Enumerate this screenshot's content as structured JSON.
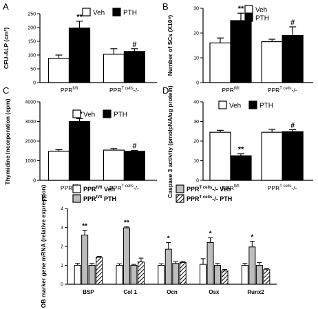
{
  "figure": {
    "panel_labels": [
      "A",
      "B",
      "C",
      "D",
      "E"
    ],
    "legend": {
      "veh": "Veh",
      "pth": "PTH"
    },
    "groups": {
      "flox": "PPR",
      "flox_sup": "fl/fl",
      "ko": "PPR",
      "ko_sup": "T cells",
      "ko_suffix": "-/-"
    }
  },
  "colors": {
    "veh": "#ffffff",
    "pth": "#000000",
    "gray": "#bdbdbd",
    "stroke": "#000000"
  },
  "chart_data": [
    {
      "type": "bar",
      "panel": "A",
      "ylabel": "CFU-ALP (cm²)",
      "ylim": [
        0,
        250
      ],
      "yticks": [
        0,
        50,
        100,
        150,
        200,
        250
      ],
      "categories": [
        "PPR fl/fl",
        "PPR T cells -/-"
      ],
      "series": [
        {
          "name": "Veh",
          "values": [
            88,
            103
          ],
          "errors": [
            12,
            20
          ]
        },
        {
          "name": "PTH",
          "values": [
            198,
            113
          ],
          "errors": [
            25,
            10
          ]
        }
      ],
      "annotations": [
        {
          "series": 1,
          "category": 0,
          "text": "**"
        },
        {
          "series": 1,
          "category": 1,
          "text": "#"
        }
      ]
    },
    {
      "type": "bar",
      "panel": "B",
      "ylabel": "Number of SCs (X10⁶)",
      "ylim": [
        0,
        30
      ],
      "yticks": [
        0,
        10,
        20,
        30
      ],
      "categories": [
        "PPR fl/fl",
        "PPR T cells -/-"
      ],
      "series": [
        {
          "name": "Veh",
          "values": [
            16,
            16.5
          ],
          "errors": [
            2,
            1
          ]
        },
        {
          "name": "PTH",
          "values": [
            25,
            19
          ],
          "errors": [
            3,
            3.5
          ]
        }
      ],
      "annotations": [
        {
          "series": 1,
          "category": 0,
          "text": "**"
        },
        {
          "series": 1,
          "category": 1,
          "text": "#"
        }
      ]
    },
    {
      "type": "bar",
      "panel": "C",
      "ylabel": "Thymidine Incorporation (cpm)",
      "ylim": [
        0,
        4000
      ],
      "yticks": [
        0,
        1000,
        2000,
        3000,
        4000
      ],
      "categories": [
        "PPR fl/fl",
        "PPR T cells -/-"
      ],
      "series": [
        {
          "name": "Veh",
          "values": [
            1480,
            1540
          ],
          "errors": [
            80,
            80
          ]
        },
        {
          "name": "PTH",
          "values": [
            3000,
            1480
          ],
          "errors": [
            150,
            40
          ]
        }
      ],
      "annotations": [
        {
          "series": 1,
          "category": 0,
          "text": "**"
        },
        {
          "series": 1,
          "category": 1,
          "text": "#"
        }
      ]
    },
    {
      "type": "bar",
      "panel": "D",
      "ylabel": "Caspase 3 activity (pmolpNA/ug protein)",
      "ylim": [
        0,
        40
      ],
      "yticks": [
        0,
        10,
        20,
        30,
        40
      ],
      "categories": [
        "PPR fl/fl",
        "PPR T cells -/-"
      ],
      "series": [
        {
          "name": "Veh",
          "values": [
            24.5,
            24.5
          ],
          "errors": [
            1,
            1.5
          ]
        },
        {
          "name": "PTH",
          "values": [
            12.5,
            24.8
          ],
          "errors": [
            1,
            1
          ]
        }
      ],
      "annotations": [
        {
          "series": 1,
          "category": 0,
          "text": "**"
        },
        {
          "series": 1,
          "category": 1,
          "text": "#"
        }
      ]
    },
    {
      "type": "bar",
      "panel": "E",
      "ylabel": "OB marker gene mRNA (relative expression)",
      "ylim": [
        0,
        4
      ],
      "yticks": [
        0,
        1,
        2,
        3,
        4
      ],
      "categories": [
        "BSP",
        "Col 1",
        "Ocn",
        "Osx",
        "Runx2"
      ],
      "series": [
        {
          "name": "PPR fl/fl Veh",
          "values": [
            1.0,
            1.0,
            1.0,
            1.05,
            1.0
          ],
          "errors": [
            0.1,
            0.08,
            0.08,
            0.3,
            0.1
          ]
        },
        {
          "name": "PPR fl/fl PTH",
          "values": [
            2.6,
            2.98,
            1.85,
            2.2,
            1.97
          ],
          "errors": [
            0.25,
            0.05,
            0.35,
            0.25,
            0.3
          ]
        },
        {
          "name": "PPR T cells -/- Veh",
          "values": [
            1.0,
            1.0,
            1.1,
            1.0,
            1.0
          ],
          "errors": [
            0.1,
            0.05,
            0.1,
            0.1,
            0.15
          ]
        },
        {
          "name": "PPR T cells -/- PTH",
          "values": [
            1.42,
            1.18,
            1.15,
            0.7,
            0.77
          ],
          "errors": [
            0.05,
            0.2,
            0.05,
            0.08,
            0.05
          ]
        }
      ],
      "annotations": [
        {
          "series": 1,
          "category": 0,
          "text": "**"
        },
        {
          "series": 1,
          "category": 1,
          "text": "**"
        },
        {
          "series": 1,
          "category": 2,
          "text": "*"
        },
        {
          "series": 1,
          "category": 3,
          "text": "*"
        },
        {
          "series": 1,
          "category": 4,
          "text": "*"
        }
      ]
    }
  ]
}
